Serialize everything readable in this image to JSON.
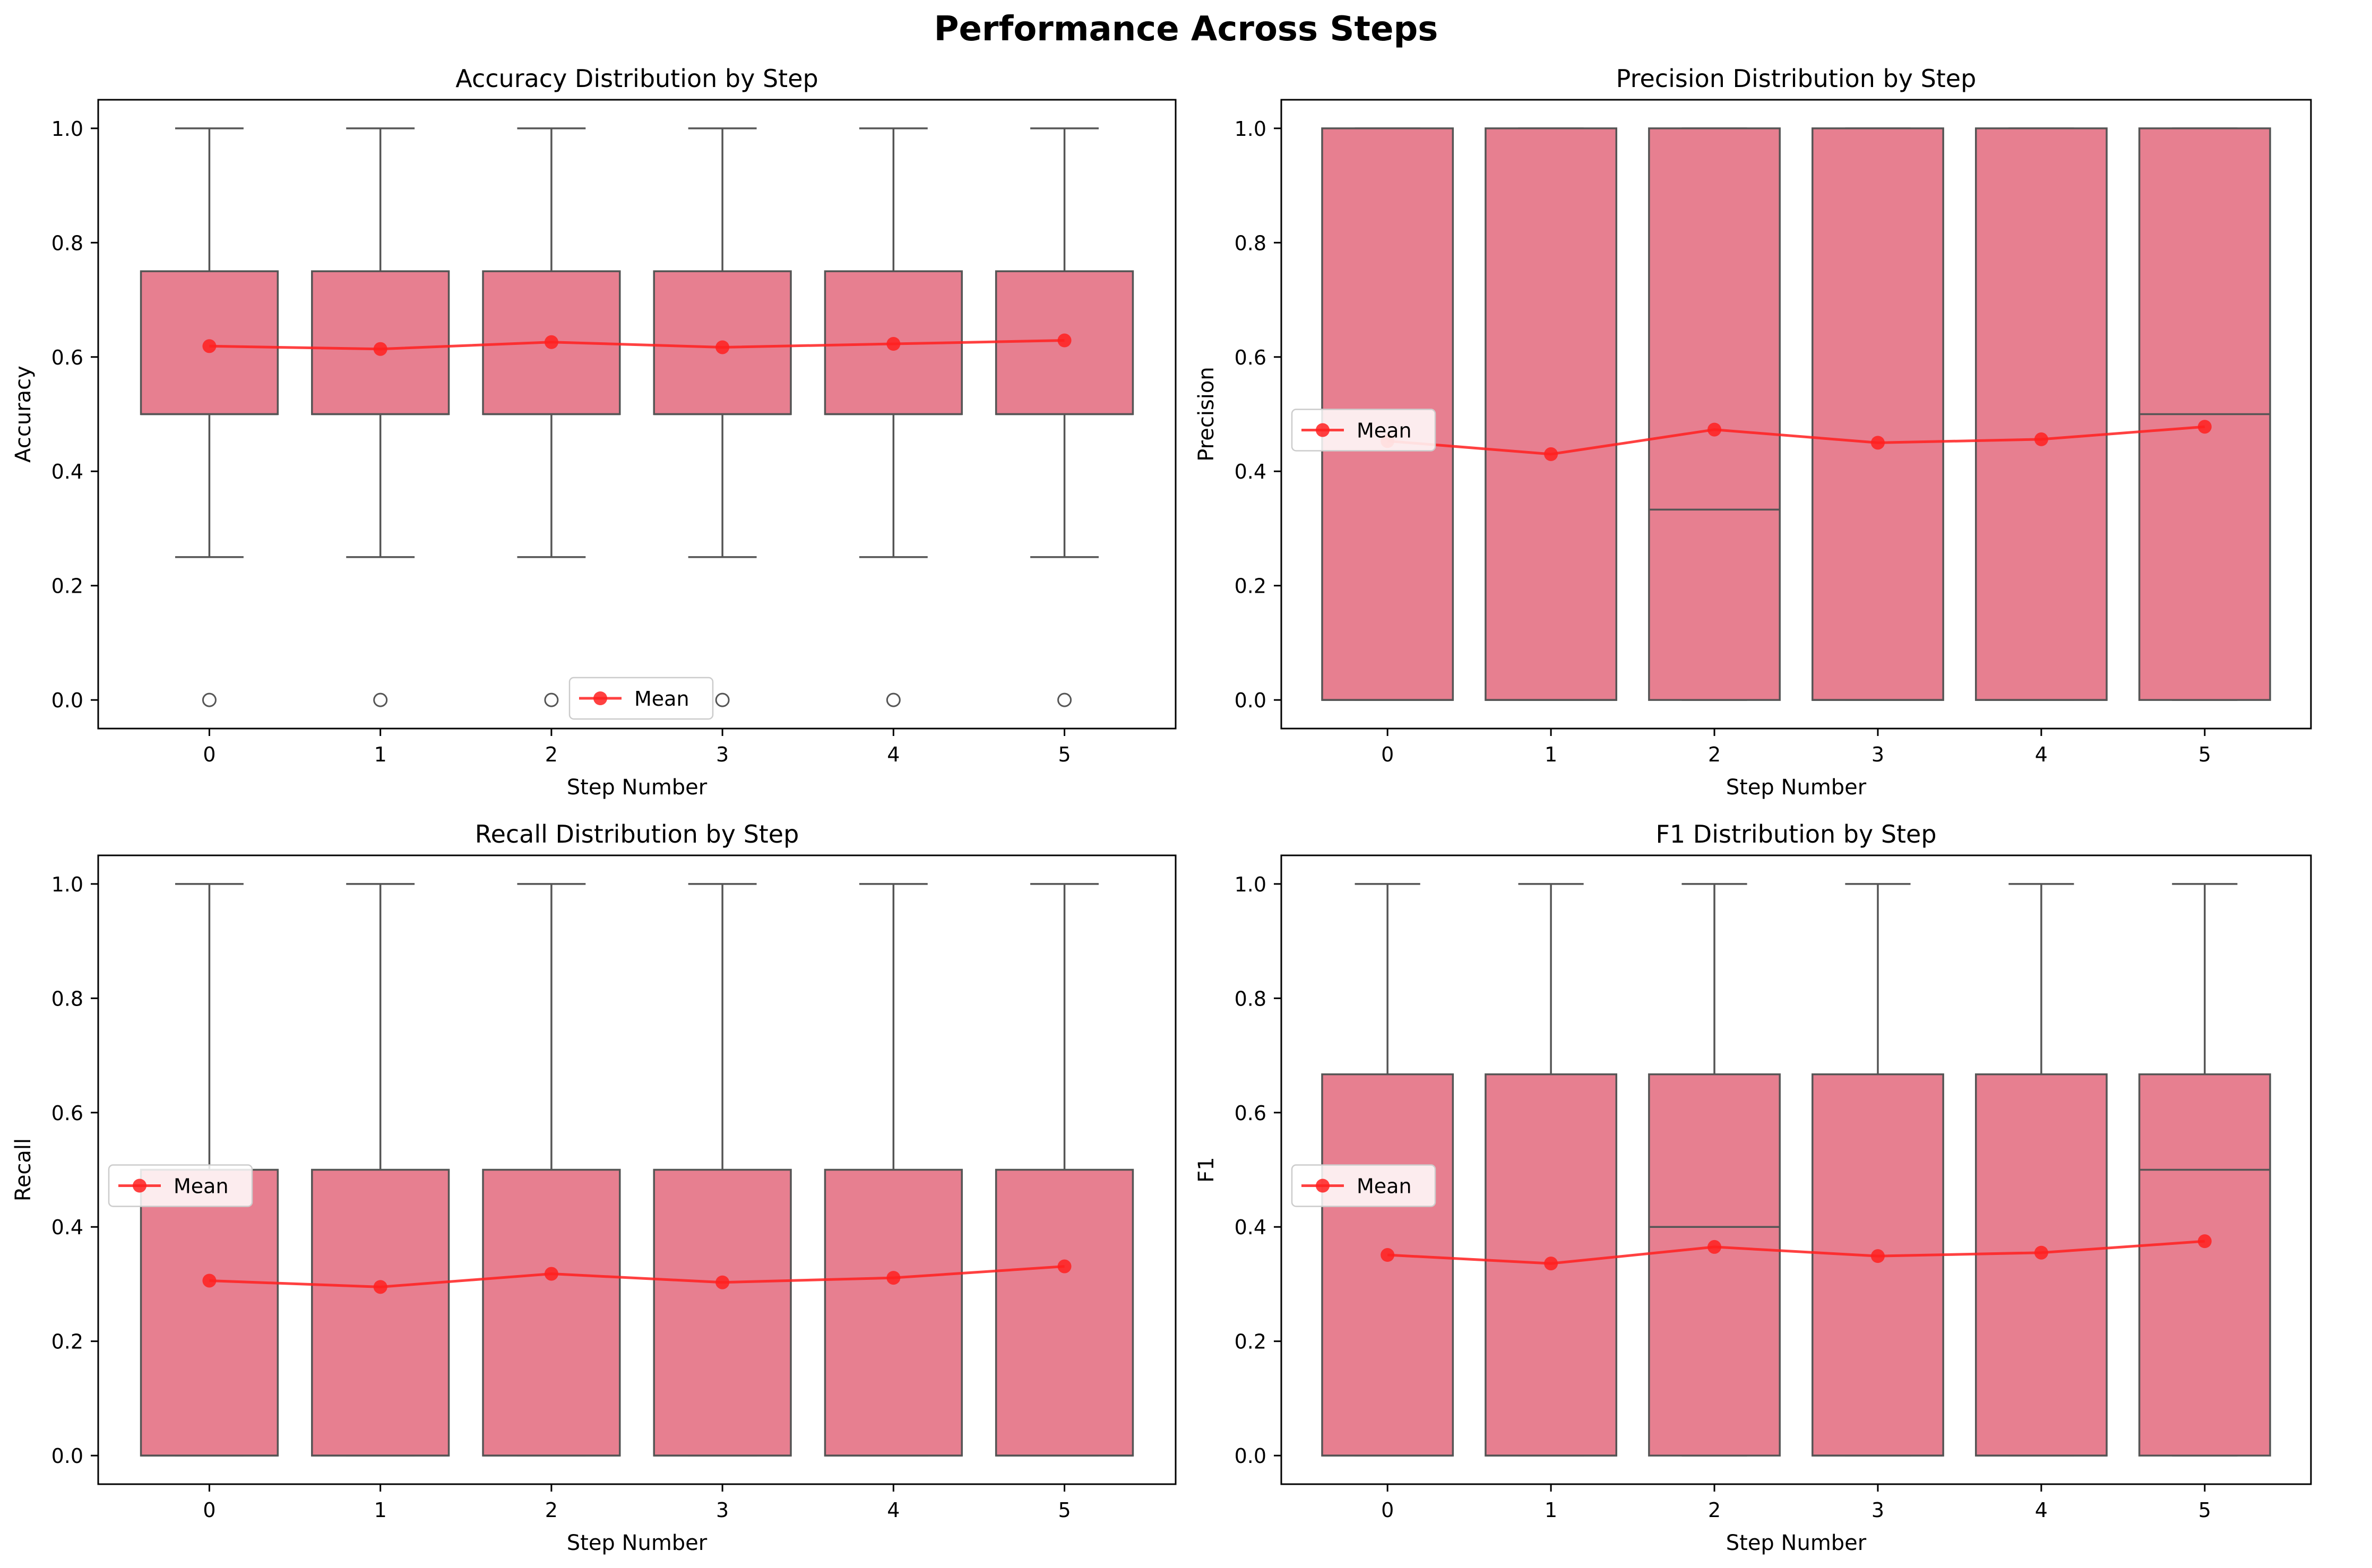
{
  "figure": {
    "title": "Performance Across Steps"
  },
  "style": {
    "box_fill": "#e77f90",
    "box_edge": "#555555",
    "mean_color": "#ff2020"
  },
  "chart_data": [
    {
      "type": "box",
      "title": "Accuracy Distribution by Step",
      "xlabel": "Step Number",
      "ylabel": "Accuracy",
      "categories": [
        "0",
        "1",
        "2",
        "3",
        "4",
        "5"
      ],
      "ylim": [
        -0.05,
        1.05
      ],
      "yticks": [
        0.0,
        0.2,
        0.4,
        0.6,
        0.8,
        1.0
      ],
      "ytick_labels": [
        "0.0",
        "0.2",
        "0.4",
        "0.6",
        "0.8",
        "1.0"
      ],
      "boxes": [
        {
          "whislo": 0.25,
          "q1": 0.5,
          "med": 0.5,
          "q3": 0.75,
          "whishi": 1.0,
          "fliers": [
            0.0
          ]
        },
        {
          "whislo": 0.25,
          "q1": 0.5,
          "med": 0.5,
          "q3": 0.75,
          "whishi": 1.0,
          "fliers": [
            0.0
          ]
        },
        {
          "whislo": 0.25,
          "q1": 0.5,
          "med": 0.5,
          "q3": 0.75,
          "whishi": 1.0,
          "fliers": [
            0.0
          ]
        },
        {
          "whislo": 0.25,
          "q1": 0.5,
          "med": 0.5,
          "q3": 0.75,
          "whishi": 1.0,
          "fliers": [
            0.0
          ]
        },
        {
          "whislo": 0.25,
          "q1": 0.5,
          "med": 0.5,
          "q3": 0.75,
          "whishi": 1.0,
          "fliers": [
            0.0
          ]
        },
        {
          "whislo": 0.25,
          "q1": 0.5,
          "med": 0.5,
          "q3": 0.75,
          "whishi": 1.0,
          "fliers": [
            0.0
          ]
        }
      ],
      "series": [
        {
          "name": "Mean",
          "values": [
            0.619,
            0.614,
            0.626,
            0.617,
            0.623,
            0.629
          ]
        }
      ],
      "legend": "lower center",
      "grid": false
    },
    {
      "type": "box",
      "title": "Precision Distribution by Step",
      "xlabel": "Step Number",
      "ylabel": "Precision",
      "categories": [
        "0",
        "1",
        "2",
        "3",
        "4",
        "5"
      ],
      "ylim": [
        -0.05,
        1.05
      ],
      "yticks": [
        0.0,
        0.2,
        0.4,
        0.6,
        0.8,
        1.0
      ],
      "ytick_labels": [
        "0.0",
        "0.2",
        "0.4",
        "0.6",
        "0.8",
        "1.0"
      ],
      "boxes": [
        {
          "whislo": 0.0,
          "q1": 0.0,
          "med": 0.0,
          "q3": 1.0,
          "whishi": 1.0,
          "fliers": []
        },
        {
          "whislo": 0.0,
          "q1": 0.0,
          "med": 0.0,
          "q3": 1.0,
          "whishi": 1.0,
          "fliers": []
        },
        {
          "whislo": 0.0,
          "q1": 0.0,
          "med": 0.333,
          "q3": 1.0,
          "whishi": 1.0,
          "fliers": []
        },
        {
          "whislo": 0.0,
          "q1": 0.0,
          "med": 0.0,
          "q3": 1.0,
          "whishi": 1.0,
          "fliers": []
        },
        {
          "whislo": 0.0,
          "q1": 0.0,
          "med": 0.0,
          "q3": 1.0,
          "whishi": 1.0,
          "fliers": []
        },
        {
          "whislo": 0.0,
          "q1": 0.0,
          "med": 0.5,
          "q3": 1.0,
          "whishi": 1.0,
          "fliers": []
        }
      ],
      "series": [
        {
          "name": "Mean",
          "values": [
            0.453,
            0.43,
            0.473,
            0.45,
            0.456,
            0.478
          ]
        }
      ],
      "legend": "center left",
      "grid": false
    },
    {
      "type": "box",
      "title": "Recall Distribution by Step",
      "xlabel": "Step Number",
      "ylabel": "Recall",
      "categories": [
        "0",
        "1",
        "2",
        "3",
        "4",
        "5"
      ],
      "ylim": [
        -0.05,
        1.05
      ],
      "yticks": [
        0.0,
        0.2,
        0.4,
        0.6,
        0.8,
        1.0
      ],
      "ytick_labels": [
        "0.0",
        "0.2",
        "0.4",
        "0.6",
        "0.8",
        "1.0"
      ],
      "boxes": [
        {
          "whislo": 0.0,
          "q1": 0.0,
          "med": 0.0,
          "q3": 0.5,
          "whishi": 1.0,
          "fliers": []
        },
        {
          "whislo": 0.0,
          "q1": 0.0,
          "med": 0.0,
          "q3": 0.5,
          "whishi": 1.0,
          "fliers": []
        },
        {
          "whislo": 0.0,
          "q1": 0.0,
          "med": 0.0,
          "q3": 0.5,
          "whishi": 1.0,
          "fliers": []
        },
        {
          "whislo": 0.0,
          "q1": 0.0,
          "med": 0.0,
          "q3": 0.5,
          "whishi": 1.0,
          "fliers": []
        },
        {
          "whislo": 0.0,
          "q1": 0.0,
          "med": 0.0,
          "q3": 0.5,
          "whishi": 1.0,
          "fliers": []
        },
        {
          "whislo": 0.0,
          "q1": 0.0,
          "med": 0.0,
          "q3": 0.5,
          "whishi": 1.0,
          "fliers": []
        }
      ],
      "series": [
        {
          "name": "Mean",
          "values": [
            0.306,
            0.295,
            0.318,
            0.303,
            0.311,
            0.331
          ]
        }
      ],
      "legend": "center left",
      "grid": false
    },
    {
      "type": "box",
      "title": "F1 Distribution by Step",
      "xlabel": "Step Number",
      "ylabel": "F1",
      "categories": [
        "0",
        "1",
        "2",
        "3",
        "4",
        "5"
      ],
      "ylim": [
        -0.05,
        1.05
      ],
      "yticks": [
        0.0,
        0.2,
        0.4,
        0.6,
        0.8,
        1.0
      ],
      "ytick_labels": [
        "0.0",
        "0.2",
        "0.4",
        "0.6",
        "0.8",
        "1.0"
      ],
      "boxes": [
        {
          "whislo": 0.0,
          "q1": 0.0,
          "med": 0.0,
          "q3": 0.667,
          "whishi": 1.0,
          "fliers": []
        },
        {
          "whislo": 0.0,
          "q1": 0.0,
          "med": 0.0,
          "q3": 0.667,
          "whishi": 1.0,
          "fliers": []
        },
        {
          "whislo": 0.0,
          "q1": 0.0,
          "med": 0.4,
          "q3": 0.667,
          "whishi": 1.0,
          "fliers": []
        },
        {
          "whislo": 0.0,
          "q1": 0.0,
          "med": 0.0,
          "q3": 0.667,
          "whishi": 1.0,
          "fliers": []
        },
        {
          "whislo": 0.0,
          "q1": 0.0,
          "med": 0.0,
          "q3": 0.667,
          "whishi": 1.0,
          "fliers": []
        },
        {
          "whislo": 0.0,
          "q1": 0.0,
          "med": 0.5,
          "q3": 0.667,
          "whishi": 1.0,
          "fliers": []
        }
      ],
      "series": [
        {
          "name": "Mean",
          "values": [
            0.351,
            0.336,
            0.365,
            0.349,
            0.355,
            0.375
          ]
        }
      ],
      "legend": "center left",
      "grid": false
    }
  ]
}
